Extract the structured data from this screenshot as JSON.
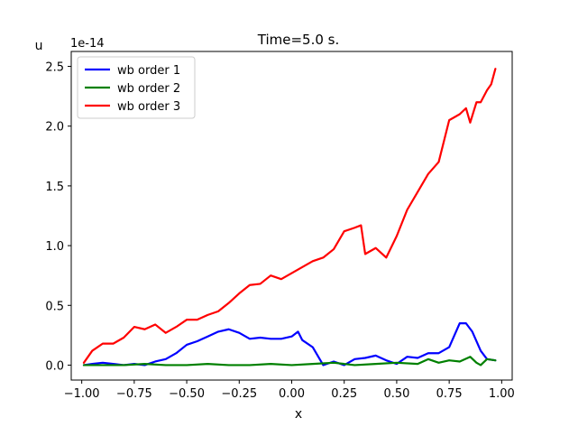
{
  "chart_data": {
    "type": "line",
    "title": "Time=5.0 s.",
    "xlabel": "x",
    "ylabel": "u",
    "y_offset_label": "1e-14",
    "xlim": [
      -1.05,
      1.05
    ],
    "ylim": [
      -0.125,
      2.625
    ],
    "xticks": [
      -1.0,
      -0.75,
      -0.5,
      -0.25,
      0.0,
      0.25,
      0.5,
      0.75,
      1.0
    ],
    "xtick_labels": [
      "−1.00",
      "−0.75",
      "−0.50",
      "−0.25",
      "0.00",
      "0.25",
      "0.50",
      "0.75",
      "1.00"
    ],
    "yticks": [
      0.0,
      0.5,
      1.0,
      1.5,
      2.0,
      2.5
    ],
    "ytick_labels": [
      "0.0",
      "0.5",
      "1.0",
      "1.5",
      "2.0",
      "2.5"
    ],
    "grid": false,
    "legend_position": "top-left",
    "series": [
      {
        "name": "wb order 1",
        "color": "#0000ff",
        "x": [
          -0.99,
          -0.95,
          -0.9,
          -0.85,
          -0.8,
          -0.75,
          -0.7,
          -0.65,
          -0.6,
          -0.55,
          -0.5,
          -0.45,
          -0.4,
          -0.35,
          -0.3,
          -0.25,
          -0.2,
          -0.15,
          -0.1,
          -0.05,
          0.0,
          0.03,
          0.05,
          0.1,
          0.15,
          0.2,
          0.25,
          0.3,
          0.35,
          0.4,
          0.45,
          0.5,
          0.55,
          0.6,
          0.65,
          0.7,
          0.75,
          0.8,
          0.83,
          0.86,
          0.9,
          0.93,
          0.97
        ],
        "y": [
          0.0,
          0.01,
          0.02,
          0.01,
          0.0,
          0.01,
          0.0,
          0.03,
          0.05,
          0.1,
          0.17,
          0.2,
          0.24,
          0.28,
          0.3,
          0.27,
          0.22,
          0.23,
          0.22,
          0.22,
          0.24,
          0.28,
          0.21,
          0.15,
          0.0,
          0.03,
          0.0,
          0.05,
          0.06,
          0.08,
          0.04,
          0.01,
          0.07,
          0.06,
          0.1,
          0.1,
          0.15,
          0.35,
          0.35,
          0.28,
          0.12,
          0.05,
          0.04
        ]
      },
      {
        "name": "wb order 2",
        "color": "#008000",
        "x": [
          -0.99,
          -0.9,
          -0.8,
          -0.7,
          -0.6,
          -0.5,
          -0.4,
          -0.3,
          -0.2,
          -0.1,
          0.0,
          0.1,
          0.2,
          0.3,
          0.4,
          0.5,
          0.6,
          0.65,
          0.7,
          0.75,
          0.8,
          0.85,
          0.88,
          0.9,
          0.93,
          0.97
        ],
        "y": [
          0.0,
          0.0,
          0.0,
          0.01,
          0.0,
          0.0,
          0.01,
          0.0,
          0.0,
          0.01,
          0.0,
          0.01,
          0.02,
          0.0,
          0.01,
          0.02,
          0.01,
          0.05,
          0.02,
          0.04,
          0.03,
          0.07,
          0.02,
          0.0,
          0.05,
          0.04
        ]
      },
      {
        "name": "wb order 3",
        "color": "#ff0000",
        "x": [
          -0.99,
          -0.95,
          -0.9,
          -0.85,
          -0.8,
          -0.75,
          -0.7,
          -0.65,
          -0.6,
          -0.55,
          -0.5,
          -0.45,
          -0.4,
          -0.35,
          -0.3,
          -0.25,
          -0.2,
          -0.15,
          -0.1,
          -0.05,
          0.0,
          0.05,
          0.1,
          0.15,
          0.2,
          0.25,
          0.3,
          0.33,
          0.35,
          0.4,
          0.45,
          0.5,
          0.55,
          0.6,
          0.65,
          0.7,
          0.75,
          0.8,
          0.83,
          0.85,
          0.88,
          0.9,
          0.93,
          0.95,
          0.97
        ],
        "y": [
          0.02,
          0.12,
          0.18,
          0.18,
          0.23,
          0.32,
          0.3,
          0.34,
          0.27,
          0.32,
          0.38,
          0.38,
          0.42,
          0.45,
          0.52,
          0.6,
          0.67,
          0.68,
          0.75,
          0.72,
          0.77,
          0.82,
          0.87,
          0.9,
          0.97,
          1.12,
          1.15,
          1.17,
          0.93,
          0.98,
          0.9,
          1.08,
          1.3,
          1.45,
          1.6,
          1.7,
          2.05,
          2.1,
          2.15,
          2.03,
          2.2,
          2.2,
          2.3,
          2.35,
          2.48
        ]
      }
    ]
  }
}
